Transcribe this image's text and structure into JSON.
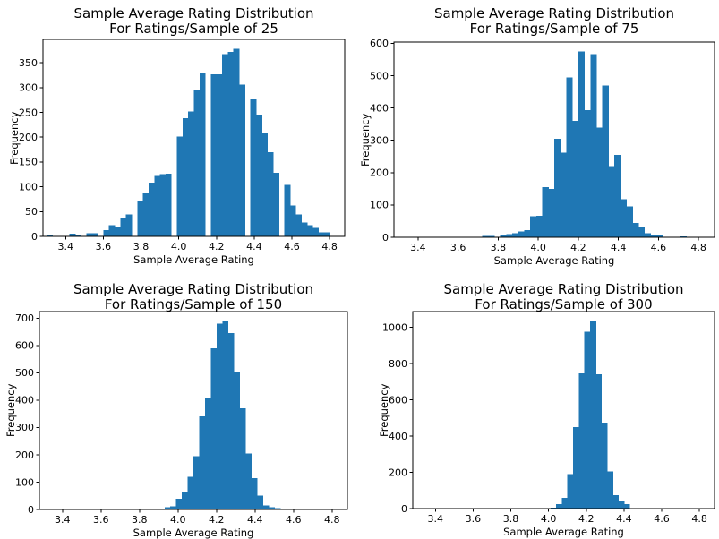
{
  "figure": {
    "background": "#ffffff",
    "bar_color": "#1f77b4",
    "axis_color": "#000000",
    "text_color": "#000000"
  },
  "chart_data": [
    {
      "type": "bar",
      "title_line1": "Sample Average Rating Distribution",
      "title_line2": "For Ratings/Sample of 25",
      "xlabel": "Sample Average Rating",
      "ylabel": "Frequency",
      "xlim": [
        3.28,
        4.88
      ],
      "ylim": [
        0,
        397
      ],
      "xticks": [
        3.4,
        3.6,
        3.8,
        4.0,
        4.2,
        4.4,
        4.6,
        4.8
      ],
      "yticks": [
        0,
        50,
        100,
        150,
        200,
        250,
        300,
        350
      ],
      "grid": false,
      "legend": "none",
      "bin_start": 3.3,
      "bin_width": 0.03,
      "frequencies": [
        2,
        0,
        0,
        0,
        5,
        4,
        0,
        6,
        6,
        0,
        13,
        23,
        18,
        36,
        44,
        0,
        71,
        88,
        108,
        122,
        125,
        126,
        0,
        201,
        238,
        252,
        295,
        330,
        0,
        327,
        327,
        367,
        372,
        378,
        306,
        0,
        276,
        245,
        208,
        170,
        128,
        0,
        104,
        62,
        44,
        28,
        23,
        17,
        8,
        8
      ]
    },
    {
      "type": "bar",
      "title_line1": "Sample Average Rating Distribution",
      "title_line2": "For Ratings/Sample of 75",
      "xlabel": "Sample Average Rating",
      "ylabel": "Frequency",
      "xlim": [
        3.28,
        4.88
      ],
      "ylim": [
        0,
        604
      ],
      "xticks": [
        3.4,
        3.6,
        3.8,
        4.0,
        4.2,
        4.4,
        4.6,
        4.8
      ],
      "yticks": [
        0,
        100,
        200,
        300,
        400,
        500,
        600
      ],
      "grid": false,
      "legend": "none",
      "bin_start": 3.72,
      "bin_width": 0.03,
      "frequencies": [
        4,
        4,
        0,
        5,
        10,
        13,
        18,
        22,
        65,
        66,
        155,
        150,
        305,
        262,
        495,
        360,
        575,
        393,
        567,
        340,
        470,
        220,
        255,
        118,
        96,
        45,
        32,
        13,
        8,
        5,
        0,
        0,
        0,
        3
      ]
    },
    {
      "type": "bar",
      "title_line1": "Sample Average Rating Distribution",
      "title_line2": "For Ratings/Sample of 150",
      "xlabel": "Sample Average Rating",
      "ylabel": "Frequency",
      "xlim": [
        3.28,
        4.88
      ],
      "ylim": [
        0,
        724
      ],
      "xticks": [
        3.4,
        3.6,
        3.8,
        4.0,
        4.2,
        4.4,
        4.6,
        4.8
      ],
      "yticks": [
        0,
        100,
        200,
        300,
        400,
        500,
        600,
        700
      ],
      "grid": false,
      "legend": "none",
      "bin_start": 3.9,
      "bin_width": 0.03,
      "frequencies": [
        3,
        8,
        12,
        40,
        62,
        120,
        195,
        340,
        410,
        590,
        680,
        690,
        645,
        505,
        370,
        205,
        115,
        50,
        15,
        8,
        5
      ]
    },
    {
      "type": "bar",
      "title_line1": "Sample Average Rating Distribution",
      "title_line2": "For Ratings/Sample of 300",
      "xlabel": "Sample Average Rating",
      "ylabel": "Frequency",
      "xlim": [
        3.28,
        4.88
      ],
      "ylim": [
        0,
        1087
      ],
      "xticks": [
        3.4,
        3.6,
        3.8,
        4.0,
        4.2,
        4.4,
        4.6,
        4.8
      ],
      "yticks": [
        0,
        200,
        400,
        600,
        800,
        1000
      ],
      "grid": false,
      "legend": "none",
      "bin_start": 4.01,
      "bin_width": 0.03,
      "frequencies": [
        5,
        25,
        60,
        190,
        450,
        745,
        975,
        1035,
        740,
        475,
        205,
        75,
        40,
        25
      ]
    }
  ]
}
